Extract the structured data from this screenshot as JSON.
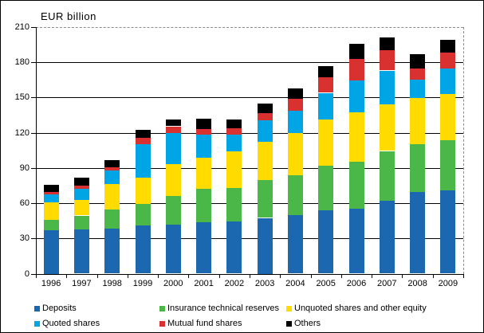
{
  "chart_data": {
    "type": "bar",
    "stacked": true,
    "title": "EUR billion",
    "categories": [
      "1996",
      "1997",
      "1998",
      "1999",
      "2000",
      "2001",
      "2002",
      "2003",
      "2004",
      "2005",
      "2006",
      "2007",
      "2008",
      "2009"
    ],
    "series": [
      {
        "name": "Deposits",
        "color": "#1C68B0",
        "values": [
          37,
          37.5,
          38.5,
          41,
          41.5,
          43.5,
          44.5,
          47.5,
          50,
          54,
          55.5,
          62,
          69.5,
          71
        ]
      },
      {
        "name": "Insurance technical reserves",
        "color": "#4BB748",
        "values": [
          8.5,
          12,
          16,
          18.5,
          24.5,
          29,
          28.5,
          32,
          33.5,
          38,
          40,
          42.5,
          40.5,
          42.5
        ]
      },
      {
        "name": "Unquoted shares and other equity",
        "color": "#FFDB00",
        "values": [
          15,
          13.5,
          22,
          22,
          27,
          26.5,
          31,
          33,
          36.5,
          39.5,
          42,
          39.5,
          39.5,
          39.5
        ]
      },
      {
        "name": "Quoted shares",
        "color": "#00A5E5",
        "values": [
          7,
          9.5,
          11.5,
          29,
          27,
          19.5,
          14.5,
          18,
          18.5,
          22.5,
          27,
          29,
          15.5,
          21.5
        ]
      },
      {
        "name": "Mutual fund shares",
        "color": "#D93030",
        "values": [
          2,
          2.5,
          2.5,
          5,
          5.5,
          4.5,
          5.5,
          6.5,
          10.5,
          13.5,
          18.5,
          17.5,
          10,
          13.5
        ]
      },
      {
        "name": "Others",
        "color": "#000000",
        "values": [
          6,
          6.5,
          6.5,
          7,
          6,
          9,
          7.5,
          8,
          8.5,
          9.5,
          12.5,
          10.5,
          12,
          11.5
        ]
      }
    ],
    "ylim": [
      0,
      210
    ],
    "y_ticks": [
      0,
      30,
      60,
      90,
      120,
      150,
      180,
      210
    ],
    "grid": "horizontal-solid-black, top-and-right-dashed-gray",
    "legend_position": "bottom",
    "legend_order": [
      "Deposits",
      "Insurance technical reserves",
      "Unquoted shares and other equity",
      "Quoted shares",
      "Mutual fund shares",
      "Others"
    ]
  }
}
